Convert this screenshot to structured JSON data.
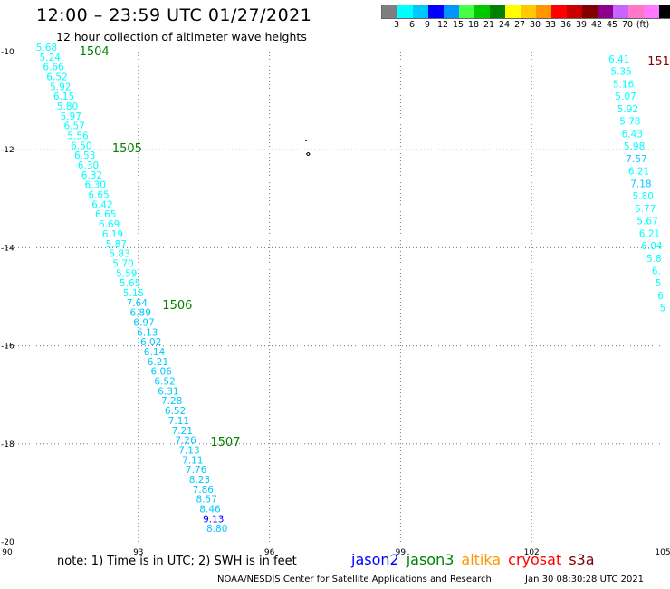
{
  "header": {
    "title": "12:00 – 23:59 UTC 01/27/2021",
    "subtitle": "12 hour collection of altimeter wave heights"
  },
  "color_scale": {
    "colors": [
      "#7f7f7f",
      "#00ffff",
      "#00c8ff",
      "#0000ff",
      "#0096ff",
      "#46ff46",
      "#00c800",
      "#008200",
      "#ffff00",
      "#ffc800",
      "#ff9600",
      "#ff0000",
      "#c80000",
      "#820000",
      "#8c008c",
      "#c864ff",
      "#ff78c8",
      "#ff78ff",
      "#000000"
    ],
    "labels": [
      "3",
      "6",
      "9",
      "12",
      "15",
      "18",
      "21",
      "24",
      "27",
      "30",
      "33",
      "36",
      "39",
      "42",
      "45",
      "70",
      "(ft)"
    ]
  },
  "map": {
    "lon_range": [
      90,
      105
    ],
    "lat_range": [
      -20,
      -10
    ],
    "lon_ticks": [
      "90",
      "93",
      "96",
      "99",
      "102",
      "105"
    ],
    "lat_ticks": [
      "-10",
      "-12",
      "-14",
      "-16",
      "-18",
      "-20"
    ],
    "tracks": [
      {
        "pass_labels": [
          {
            "text": "1504",
            "lon": 91.65,
            "lat": -10.0,
            "color": "#008200"
          },
          {
            "text": "1505",
            "lon": 92.4,
            "lat": -11.98,
            "color": "#008200"
          },
          {
            "text": "1506",
            "lon": 93.55,
            "lat": -15.18,
            "color": "#008200"
          },
          {
            "text": "1507",
            "lon": 94.65,
            "lat": -17.97,
            "color": "#008200"
          }
        ],
        "start": {
          "lon": 90.9,
          "lat": -9.98
        },
        "end": {
          "lon": 94.8,
          "lat": -19.8
        },
        "values": [
          "5.68",
          "5.24",
          "6.66",
          "6.52",
          "5.92",
          "6.15",
          "5.80",
          "5.97",
          "6.57",
          "5.56",
          "6.50",
          "6.53",
          "6.30",
          "6.32",
          "6.30",
          "6.65",
          "6.42",
          "6.65",
          "6.69",
          "6.19",
          "5.87",
          "5.83",
          "5.70",
          "5.59",
          "5.65",
          "5.15",
          "7.64",
          "6.89",
          "6.97",
          "6.13",
          "6.02",
          "6.14",
          "6.21",
          "6.06",
          "6.52",
          "6.31",
          "7.28",
          "6.52",
          "7.11",
          "7.21",
          "7.26",
          "7.13",
          "7.11",
          "7.76",
          "8.23",
          "7.86",
          "8.57",
          "8.46",
          "9.13",
          "8.80"
        ],
        "colors": [
          "#00ffff",
          "#00ffff",
          "#00ffff",
          "#00ffff",
          "#00ffff",
          "#00ffff",
          "#00ffff",
          "#00ffff",
          "#00ffff",
          "#00ffff",
          "#00ffff",
          "#00ffff",
          "#00ffff",
          "#00ffff",
          "#00ffff",
          "#00ffff",
          "#00ffff",
          "#00ffff",
          "#00ffff",
          "#00ffff",
          "#00ffff",
          "#00ffff",
          "#00ffff",
          "#00ffff",
          "#00ffff",
          "#00ffff",
          "#00c8ff",
          "#00c8ff",
          "#00c8ff",
          "#00c8ff",
          "#00c8ff",
          "#00c8ff",
          "#00c8ff",
          "#00c8ff",
          "#00c8ff",
          "#00c8ff",
          "#00c8ff",
          "#00c8ff",
          "#00c8ff",
          "#00c8ff",
          "#00c8ff",
          "#00c8ff",
          "#00c8ff",
          "#00c8ff",
          "#00c8ff",
          "#00c8ff",
          "#00c8ff",
          "#00c8ff",
          "#0000ff",
          "#00c8ff"
        ]
      },
      {
        "pass_labels": [
          {
            "text": "151",
            "lon": 104.65,
            "lat": -10.2,
            "color": "#820000"
          }
        ],
        "start": {
          "lon": 104.0,
          "lat": -10.22
        },
        "end": {
          "lon": 105.0,
          "lat": -15.3
        },
        "values": [
          "6.41",
          "5.35",
          "5.16",
          "5.07",
          "5.92",
          "5.78",
          "6.43",
          "5.98",
          "7.57",
          "6.21",
          "7.18",
          "5.80",
          "5.77",
          "5.67",
          "6.21",
          "6.04",
          "5.8",
          "6.",
          "5",
          "6",
          "5"
        ],
        "colors": [
          "#00ffff",
          "#00ffff",
          "#00ffff",
          "#00ffff",
          "#00ffff",
          "#00ffff",
          "#00ffff",
          "#00ffff",
          "#00c8ff",
          "#00ffff",
          "#00c8ff",
          "#00ffff",
          "#00ffff",
          "#00ffff",
          "#00ffff",
          "#00ffff",
          "#00ffff",
          "#00ffff",
          "#00ffff",
          "#00ffff",
          "#00ffff"
        ]
      }
    ]
  },
  "footer": {
    "note": "note: 1) Time is in UTC; 2) SWH is in feet",
    "satellites": [
      {
        "name": "jason2",
        "color": "#0000ff"
      },
      {
        "name": "jason3",
        "color": "#008200"
      },
      {
        "name": "altika",
        "color": "#ff9600"
      },
      {
        "name": "cryosat",
        "color": "#ff0000"
      },
      {
        "name": "s3a",
        "color": "#820000"
      }
    ],
    "credit": "NOAA/NESDIS Center for Satellite Applications and Research",
    "timestamp": "Jan 30 08:30:28 UTC 2021"
  }
}
